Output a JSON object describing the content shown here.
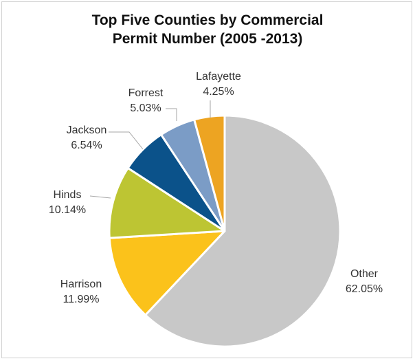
{
  "chart": {
    "title_line1": "Top Five Counties by Commercial",
    "title_line2": "Permit Number (2005 -2013)"
  },
  "chart_data": {
    "type": "pie",
    "title": "Top Five Counties by Commercial Permit Number (2005 -2013)",
    "legend": "none",
    "slices": [
      {
        "name": "Other",
        "value": 62.05,
        "label": "62.05%",
        "color": "#C8C8C8"
      },
      {
        "name": "Harrison",
        "value": 11.99,
        "label": "11.99%",
        "color": "#FBC21B"
      },
      {
        "name": "Hinds",
        "value": 10.14,
        "label": "10.14%",
        "color": "#BDC533"
      },
      {
        "name": "Jackson",
        "value": 6.54,
        "label": "6.54%",
        "color": "#0B528A"
      },
      {
        "name": "Forrest",
        "value": 5.03,
        "label": "5.03%",
        "color": "#7B9CC6"
      },
      {
        "name": "Lafayette",
        "value": 4.25,
        "label": "4.25%",
        "color": "#EDA422"
      }
    ]
  }
}
